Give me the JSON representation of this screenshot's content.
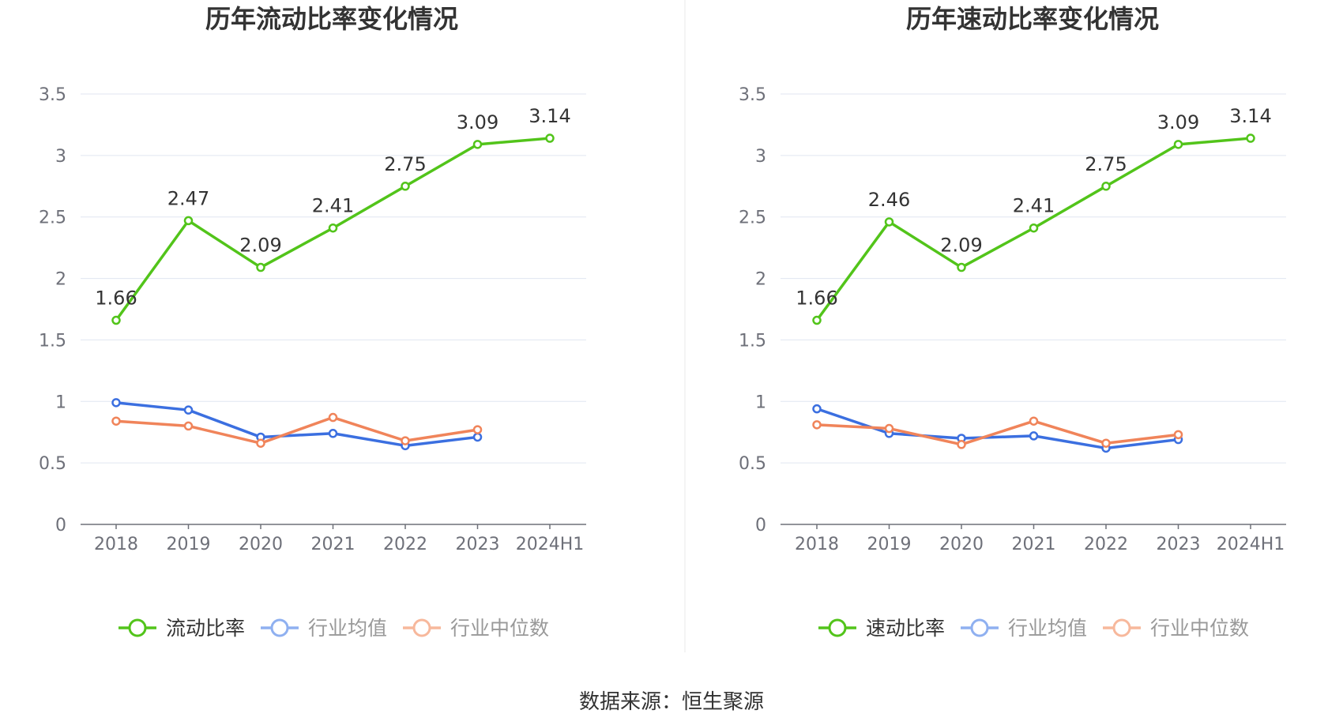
{
  "chart_data": [
    {
      "type": "line",
      "title": "历年流动比率变化情况",
      "categories": [
        "2018",
        "2019",
        "2020",
        "2021",
        "2022",
        "2023",
        "2024H1"
      ],
      "yticks": [
        "0",
        "0.5",
        "1",
        "1.5",
        "2",
        "2.5",
        "3",
        "3.5"
      ],
      "ylim": [
        0,
        3.5
      ],
      "grid": true,
      "legend_position": "bottom",
      "series": [
        {
          "name": "流动比率",
          "color": "#52c41a",
          "values": [
            1.66,
            2.47,
            2.09,
            2.41,
            2.75,
            3.09,
            3.14
          ],
          "labels": [
            "1.66",
            "2.47",
            "2.09",
            "2.41",
            "2.75",
            "3.09",
            "3.14"
          ]
        },
        {
          "name": "行业均值",
          "color": "#3b6fe0",
          "values": [
            0.99,
            0.93,
            0.71,
            0.74,
            0.64,
            0.71,
            null
          ]
        },
        {
          "name": "行业中位数",
          "color": "#f0845a",
          "values": [
            0.84,
            0.8,
            0.66,
            0.87,
            0.68,
            0.77,
            null
          ]
        }
      ]
    },
    {
      "type": "line",
      "title": "历年速动比率变化情况",
      "categories": [
        "2018",
        "2019",
        "2020",
        "2021",
        "2022",
        "2023",
        "2024H1"
      ],
      "yticks": [
        "0",
        "0.5",
        "1",
        "1.5",
        "2",
        "2.5",
        "3",
        "3.5"
      ],
      "ylim": [
        0,
        3.5
      ],
      "grid": true,
      "legend_position": "bottom",
      "series": [
        {
          "name": "速动比率",
          "color": "#52c41a",
          "values": [
            1.66,
            2.46,
            2.09,
            2.41,
            2.75,
            3.09,
            3.14
          ],
          "labels": [
            "1.66",
            "2.46",
            "2.09",
            "2.41",
            "2.75",
            "3.09",
            "3.14"
          ]
        },
        {
          "name": "行业均值",
          "color": "#3b6fe0",
          "values": [
            0.94,
            0.74,
            0.7,
            0.72,
            0.62,
            0.69,
            null
          ]
        },
        {
          "name": "行业中位数",
          "color": "#f0845a",
          "values": [
            0.81,
            0.78,
            0.65,
            0.84,
            0.66,
            0.73,
            null
          ]
        }
      ]
    }
  ],
  "footer": {
    "source": "数据来源：恒生聚源"
  }
}
